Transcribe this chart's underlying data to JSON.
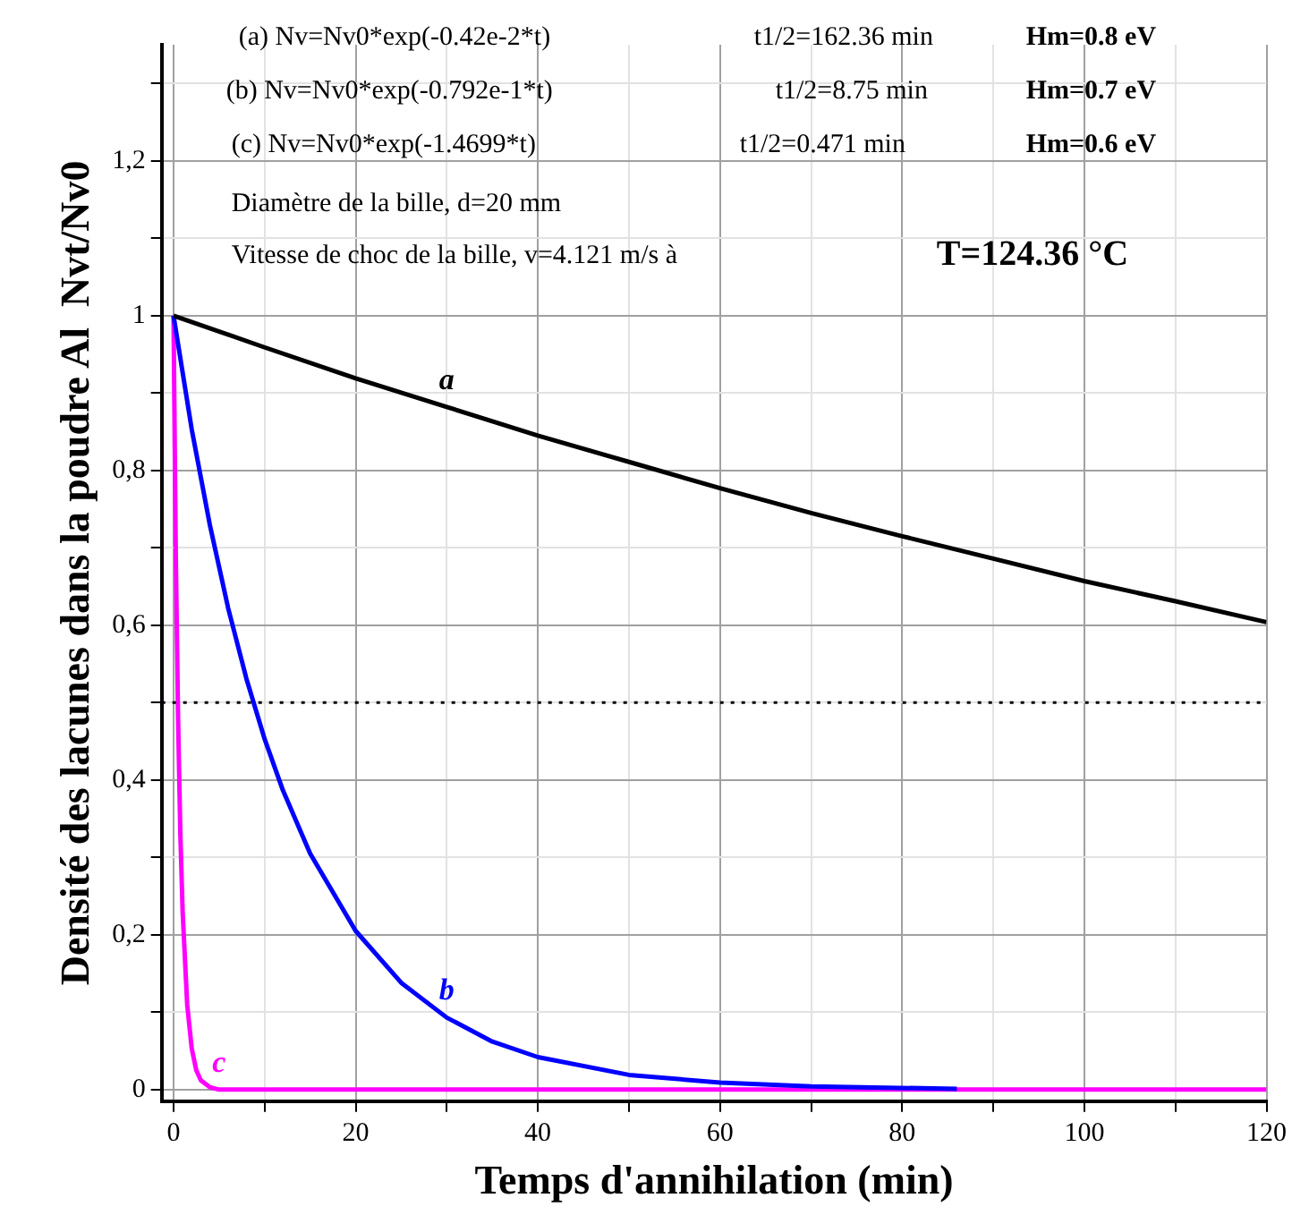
{
  "chart_data": {
    "type": "line",
    "xlabel": "Temps d'annihilation (min)",
    "ylabel": "Densité des lacunes dans la poudre Al  Nvt/Nv0",
    "xlim": [
      -1.3,
      120
    ],
    "xticks": [
      0,
      {
        "value": 10,
        "label": null
      },
      20,
      {
        "value": 30,
        "label": null
      },
      40,
      {
        "value": 50,
        "label": null
      },
      60,
      {
        "value": 70,
        "label": null
      },
      80,
      {
        "value": 90,
        "label": null
      },
      100,
      {
        "value": 110,
        "label": null
      },
      120
    ],
    "ylim": [
      -0.015,
      1.35
    ],
    "yticks": [
      {
        "value": 0,
        "label": "0"
      },
      {
        "value": 0.1,
        "label": null
      },
      {
        "value": 0.2,
        "label": "0,2"
      },
      {
        "value": 0.3,
        "label": null
      },
      {
        "value": 0.4,
        "label": "0,4"
      },
      {
        "value": 0.5,
        "label": null
      },
      {
        "value": 0.6,
        "label": "0,6"
      },
      {
        "value": 0.7,
        "label": null
      },
      {
        "value": 0.8,
        "label": "0,8"
      },
      {
        "value": 0.9,
        "label": null
      },
      {
        "value": 1,
        "label": "1"
      },
      {
        "value": 1.1,
        "label": null
      },
      {
        "value": 1.2,
        "label": "1,2"
      },
      {
        "value": 1.3,
        "label": null
      }
    ],
    "grid": true,
    "legend": false,
    "marker": "none",
    "line_style": "solid",
    "series": [
      {
        "name": "a",
        "color": "#000000",
        "x": [
          0,
          10,
          20,
          30,
          40,
          50,
          60,
          70,
          80,
          90,
          100,
          110,
          120
        ],
        "values": [
          1,
          0.959,
          0.919,
          0.882,
          0.845,
          0.811,
          0.777,
          0.745,
          0.715,
          0.686,
          0.657,
          0.631,
          0.604
        ]
      },
      {
        "name": "b",
        "color": "#0000ff",
        "x": [
          0,
          2,
          4,
          6,
          8,
          10,
          12,
          15,
          20,
          25,
          30,
          35,
          40,
          50,
          60,
          70,
          86
        ],
        "values": [
          1,
          0.853,
          0.729,
          0.622,
          0.531,
          0.453,
          0.387,
          0.305,
          0.205,
          0.138,
          0.093,
          0.062,
          0.042,
          0.019,
          0.009,
          0.004,
          0.001
        ]
      },
      {
        "name": "c",
        "color": "#ff00ff",
        "x": [
          0,
          0.25,
          0.5,
          0.75,
          1,
          1.5,
          2,
          2.5,
          3,
          4,
          5,
          120
        ],
        "values": [
          1,
          0.69,
          0.48,
          0.33,
          0.23,
          0.11,
          0.053,
          0.025,
          0.012,
          0.003,
          0,
          0
        ]
      }
    ],
    "ref_lines": [
      {
        "axis": "y",
        "value": 0.5,
        "color": "#000000",
        "line_style": "dotted"
      }
    ],
    "annotations": [
      "(a) Nv=Nv0*exp(-0.42e-2*t)",
      "t1/2=162.36 min",
      "Hm=0.8 eV",
      "(b) Nv=Nv0*exp(-0.792e-1*t)",
      "t1/2=8.75 min",
      "Hm=0.7 eV",
      "(c) Nv=Nv0*exp(-1.4699*t)",
      "t1/2=0.471 min",
      "Hm=0.6 eV",
      "Diamètre de la bille, d=20 mm",
      "Vitesse de choc de la bille, v=4.121 m/s à",
      "T=124.36 °C"
    ]
  }
}
